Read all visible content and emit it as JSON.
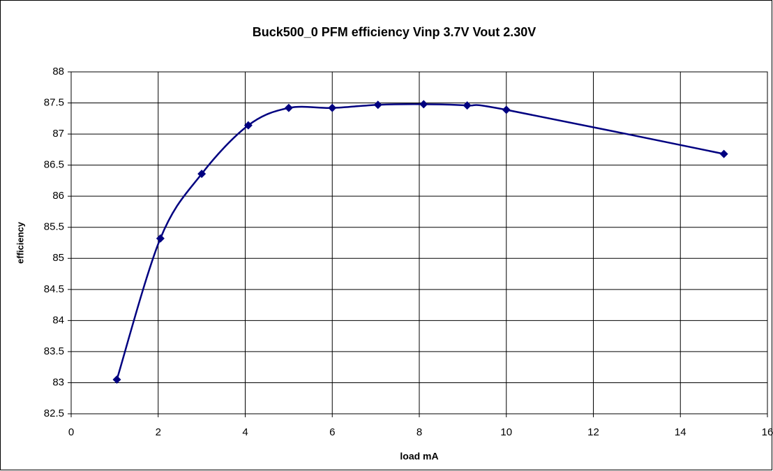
{
  "chart_data": {
    "type": "line",
    "title": "Buck500_0 PFM efficiency  Vinp 3.7V Vout 2.30V",
    "x_label": "load mA",
    "y_label": "efficiency",
    "x": [
      1.05,
      2.05,
      3,
      4.07,
      5,
      6,
      7.05,
      8.1,
      9.1,
      10,
      15
    ],
    "series": [
      {
        "name": "efficiency",
        "color": "#000080",
        "values": [
          83.05,
          85.32,
          86.36,
          87.14,
          87.42,
          87.42,
          87.47,
          87.48,
          87.46,
          87.39,
          86.68
        ]
      }
    ],
    "xlim": [
      0,
      16
    ],
    "xticks": [
      0,
      2,
      4,
      6,
      8,
      10,
      12,
      14,
      16
    ],
    "ylim": [
      82.5,
      88
    ],
    "yticks": [
      82.5,
      83,
      83.5,
      84,
      84.5,
      85,
      85.5,
      86,
      86.5,
      87,
      87.5,
      88
    ],
    "grid": true,
    "smooth": true
  }
}
